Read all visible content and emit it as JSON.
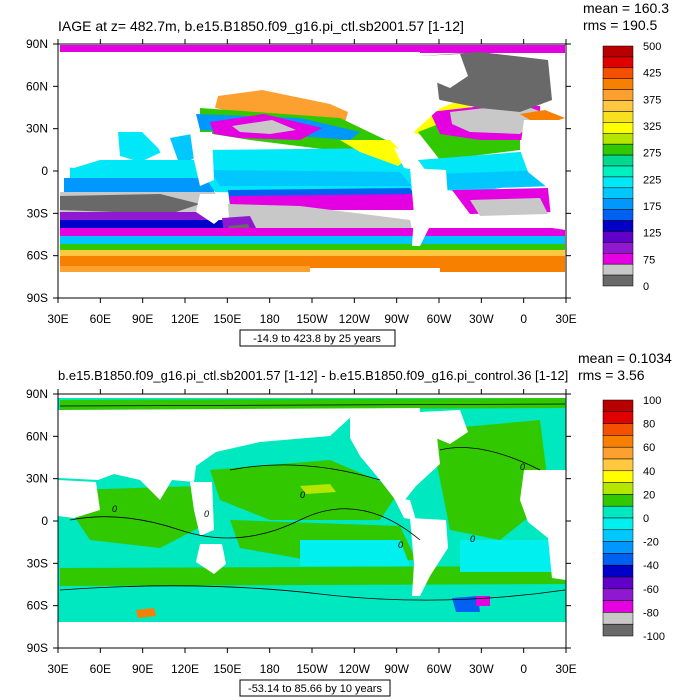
{
  "chart_data": [
    {
      "type": "heatmap",
      "title": "IAGE at z= 482.7m, b.e15.B1850.f09_g16.pi_ctl.sb2001.57 [1-12]",
      "stats": {
        "mean": "mean = 160.3",
        "rms": "rms = 190.5"
      },
      "x_ticks": [
        "30E",
        "60E",
        "90E",
        "120E",
        "150E",
        "180",
        "150W",
        "120W",
        "90W",
        "60W",
        "30W",
        "0",
        "30E"
      ],
      "y_ticks": [
        "90N",
        "60N",
        "30N",
        "0",
        "30S",
        "60S",
        "90S"
      ],
      "xlim": [
        30,
        390
      ],
      "ylim": [
        -90,
        90
      ],
      "contour_info": "-14.9 to 423.8 by 25 years",
      "colorbar_labels": [
        "500",
        "425",
        "375",
        "325",
        "275",
        "225",
        "175",
        "125",
        "75",
        "0"
      ],
      "colors": [
        "#b80000",
        "#e00000",
        "#f55000",
        "#f88000",
        "#fca030",
        "#ffc840",
        "#f8e020",
        "#ffff00",
        "#b4e600",
        "#32c800",
        "#00d890",
        "#00f0c0",
        "#00e8f8",
        "#00c8ff",
        "#0098ff",
        "#0060f0",
        "#0000c8",
        "#6000c8",
        "#9018d0",
        "#e400e0",
        "#c8c8c8",
        "#696969"
      ]
    },
    {
      "type": "heatmap",
      "title": "b.e15.B1850.f09_g16.pi_ctl.sb2001.57 [1-12] - b.e15.B1850.f09_g16.pi_control.36 [1-12]",
      "stats": {
        "mean": "mean = 0.1034",
        "rms": "rms = 3.56"
      },
      "x_ticks": [
        "30E",
        "60E",
        "90E",
        "120E",
        "150E",
        "180",
        "150W",
        "120W",
        "90W",
        "60W",
        "30W",
        "0",
        "30E"
      ],
      "y_ticks": [
        "90N",
        "60N",
        "30N",
        "0",
        "30S",
        "60S",
        "90S"
      ],
      "xlim": [
        30,
        390
      ],
      "ylim": [
        -90,
        90
      ],
      "contour_info": "-53.14 to 85.66 by 10 years",
      "contour_labels": [
        "0",
        "0",
        "0",
        "0",
        "0",
        "0"
      ],
      "colorbar_labels": [
        "100",
        "80",
        "60",
        "40",
        "20",
        "0",
        "-20",
        "-40",
        "-60",
        "-80",
        "-100"
      ],
      "colors": [
        "#b80000",
        "#e00000",
        "#f55000",
        "#f88000",
        "#fca030",
        "#ffc840",
        "#ffff00",
        "#b4e600",
        "#32c800",
        "#00e8c0",
        "#00f0f0",
        "#00c8ff",
        "#0098ff",
        "#0060f0",
        "#0000c8",
        "#6000c8",
        "#9018d0",
        "#e400e0",
        "#c8c8c8",
        "#696969"
      ]
    }
  ]
}
